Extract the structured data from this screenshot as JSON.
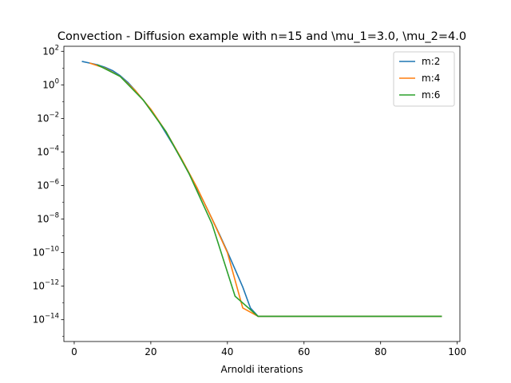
{
  "chart_data": {
    "type": "line",
    "title": "Convection - Diffusion example with n=15 and \\mu_1=3.0, \\mu_2=4.0",
    "xlabel": "Arnoldi iterations",
    "ylabel": "",
    "xlim": [
      -2.7,
      100.7
    ],
    "ylim_log10": [
      -15.3,
      2.3
    ],
    "y_scale": "log",
    "x_ticks": [
      0,
      20,
      40,
      60,
      80,
      100
    ],
    "y_ticks": [
      {
        "exp": 2,
        "label": "10^2"
      },
      {
        "exp": 0,
        "label": "10^0"
      },
      {
        "exp": -2,
        "label": "10^-2"
      },
      {
        "exp": -4,
        "label": "10^-4"
      },
      {
        "exp": -6,
        "label": "10^-6"
      },
      {
        "exp": -8,
        "label": "10^-8"
      },
      {
        "exp": -10,
        "label": "10^-10"
      },
      {
        "exp": -12,
        "label": "10^-12"
      },
      {
        "exp": -14,
        "label": "10^-14"
      }
    ],
    "grid": false,
    "legend_position": "top-right",
    "series": [
      {
        "name": "m:2",
        "color": "#1f77b4",
        "x": [
          2,
          4,
          6,
          8,
          10,
          12,
          14,
          16,
          18,
          20,
          22,
          24,
          26,
          28,
          30,
          32,
          34,
          36,
          38,
          40,
          42,
          44,
          46,
          48,
          96
        ],
        "log10_y": [
          1.4,
          1.3,
          1.2,
          1.05,
          0.85,
          0.55,
          0.15,
          -0.35,
          -0.9,
          -1.5,
          -2.15,
          -2.9,
          -3.65,
          -4.45,
          -5.3,
          -6.15,
          -7.05,
          -8.0,
          -8.95,
          -9.95,
          -11.0,
          -12.05,
          -13.3,
          -13.8,
          -13.8
        ]
      },
      {
        "name": "m:4",
        "color": "#ff7f0e",
        "x": [
          4,
          8,
          12,
          16,
          20,
          24,
          28,
          32,
          36,
          40,
          44,
          48,
          96
        ],
        "log10_y": [
          1.3,
          1.0,
          0.5,
          -0.35,
          -1.45,
          -2.8,
          -4.4,
          -6.1,
          -8.0,
          -10.0,
          -13.3,
          -13.8,
          -13.8
        ]
      },
      {
        "name": "m:6",
        "color": "#2ca02c",
        "x": [
          6,
          12,
          18,
          24,
          30,
          36,
          42,
          48,
          96
        ],
        "log10_y": [
          1.2,
          0.5,
          -0.9,
          -2.8,
          -5.3,
          -8.3,
          -12.6,
          -13.8,
          -13.8
        ]
      }
    ]
  }
}
